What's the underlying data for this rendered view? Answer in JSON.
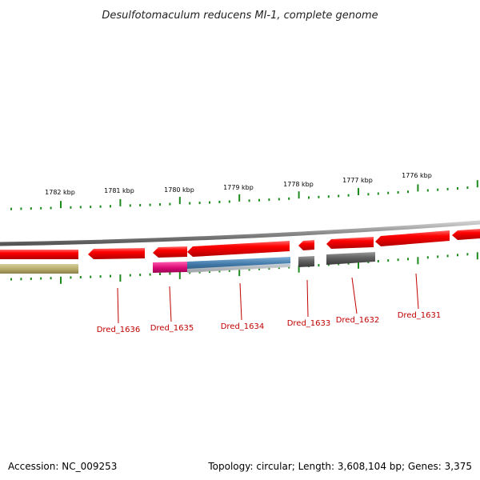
{
  "title": "Desulfotomaculum reducens MI-1, complete genome",
  "footer": {
    "accession": "Accession: NC_009253",
    "topology": "Topology: circular; Length: 3,608,104 bp; Genes: 3,375"
  },
  "colors": {
    "gene_red": "#e80000",
    "gene_gray": "#5a5a5a",
    "blue": "#4a7fa8",
    "magenta": "#e0107a",
    "olive": "#b8ae6e",
    "tick_green": "#1c8a1c",
    "label_red": "#c00000",
    "backbone": "#8a8a8a"
  },
  "ticks": [
    "1782 kbp",
    "1781 kbp",
    "1780 kbp",
    "1779 kbp",
    "1778 kbp",
    "1777 kbp",
    "1776 kbp"
  ],
  "genes": [
    "Dred_1636",
    "Dred_1635",
    "Dred_1634",
    "Dred_1633",
    "Dred_1632",
    "Dred_1631"
  ]
}
